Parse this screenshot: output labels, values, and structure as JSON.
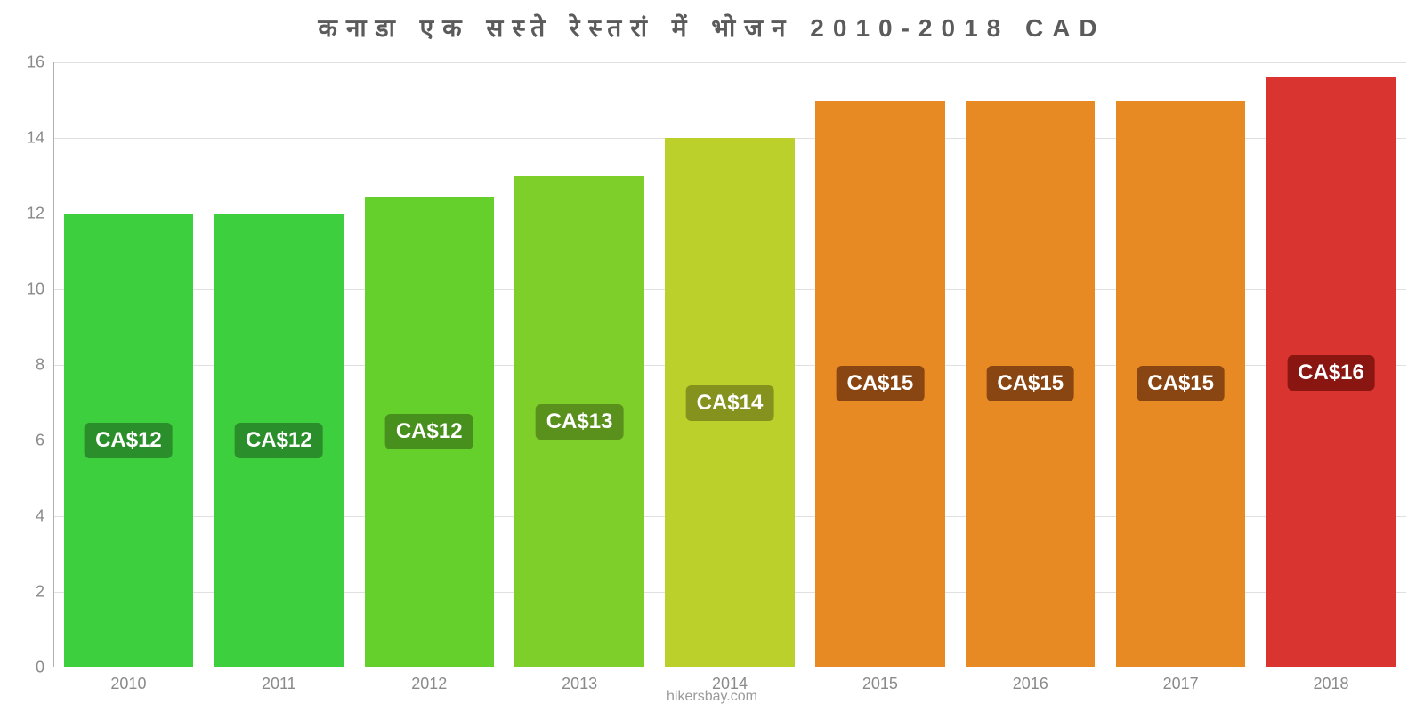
{
  "chart": {
    "type": "bar",
    "title": "कनाडा एक सस्ते रेस्तरां में भोजन 2010-2018 CAD",
    "title_color": "#5b5b5b",
    "title_fontsize": 28,
    "background_color": "#ffffff",
    "grid_color": "#e0e0e0",
    "axis_color": "#b0b0b0",
    "ylim_min": 0,
    "ylim_max": 16,
    "ytick_step": 2,
    "yticks": [
      0,
      2,
      4,
      6,
      8,
      10,
      12,
      14,
      16
    ],
    "bar_width_ratio": 0.86,
    "tick_label_color": "#8a8a8a",
    "tick_label_fontsize": 18,
    "bar_label_fontsize": 24,
    "attribution": "hikersbay.com",
    "attribution_color": "#9a9a9a",
    "bars": [
      {
        "category": "2010",
        "value": 12.0,
        "label": "CA$12",
        "fill": "#3ecf3e",
        "label_bg": "#2a8f2a"
      },
      {
        "category": "2011",
        "value": 12.0,
        "label": "CA$12",
        "fill": "#3ecf3e",
        "label_bg": "#2a8f2a"
      },
      {
        "category": "2012",
        "value": 12.45,
        "label": "CA$12",
        "fill": "#65cf2b",
        "label_bg": "#47901d"
      },
      {
        "category": "2013",
        "value": 13.0,
        "label": "CA$13",
        "fill": "#7fcf2b",
        "label_bg": "#5a911d"
      },
      {
        "category": "2014",
        "value": 14.0,
        "label": "CA$14",
        "fill": "#bcd02b",
        "label_bg": "#85921d"
      },
      {
        "category": "2015",
        "value": 15.0,
        "label": "CA$15",
        "fill": "#e78a24",
        "label_bg": "#8a4612"
      },
      {
        "category": "2016",
        "value": 15.0,
        "label": "CA$15",
        "fill": "#e78a24",
        "label_bg": "#8a4612"
      },
      {
        "category": "2017",
        "value": 15.0,
        "label": "CA$15",
        "fill": "#e78a24",
        "label_bg": "#8a4612"
      },
      {
        "category": "2018",
        "value": 15.6,
        "label": "CA$16",
        "fill": "#d9342f",
        "label_bg": "#8a1612"
      }
    ]
  }
}
